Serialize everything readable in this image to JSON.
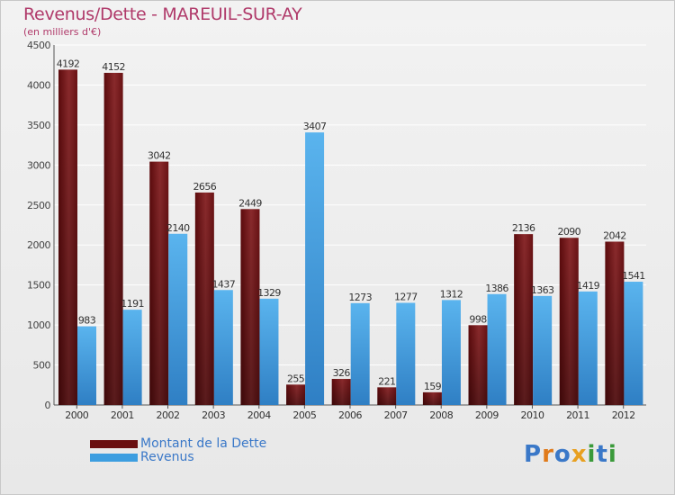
{
  "chart_data": {
    "type": "bar",
    "title": "Revenus/Dette - MAREUIL-SUR-AY",
    "subtitle": "(en milliers d'€)",
    "categories": [
      "2000",
      "2001",
      "2002",
      "2003",
      "2004",
      "2005",
      "2006",
      "2007",
      "2008",
      "2009",
      "2010",
      "2011",
      "2012"
    ],
    "series": [
      {
        "name": "Montant de la Dette",
        "color": "#6a0f10",
        "values": [
          4192,
          4152,
          3042,
          2656,
          2449,
          255,
          326,
          221,
          159,
          998,
          2136,
          2090,
          2042
        ]
      },
      {
        "name": "Revenus",
        "color": "#3d9ee0",
        "values": [
          983,
          1191,
          2140,
          1437,
          1329,
          3407,
          1273,
          1277,
          1312,
          1386,
          1363,
          1419,
          1541
        ]
      }
    ],
    "ylim": [
      0,
      4500
    ],
    "yticks": [
      0,
      500,
      1000,
      1500,
      2000,
      2500,
      3000,
      3500,
      4000,
      4500
    ],
    "grid": true,
    "legend_position": "bottom-left"
  },
  "logo": {
    "text": "Proxiti",
    "letters": [
      "P",
      "r",
      "o",
      "x",
      "i",
      "t",
      "i"
    ],
    "colors": [
      "#3a78c8",
      "#e07a1a",
      "#3a78c8",
      "#e8a020",
      "#3a9a3a",
      "#3a78c8",
      "#3a9a3a"
    ]
  }
}
